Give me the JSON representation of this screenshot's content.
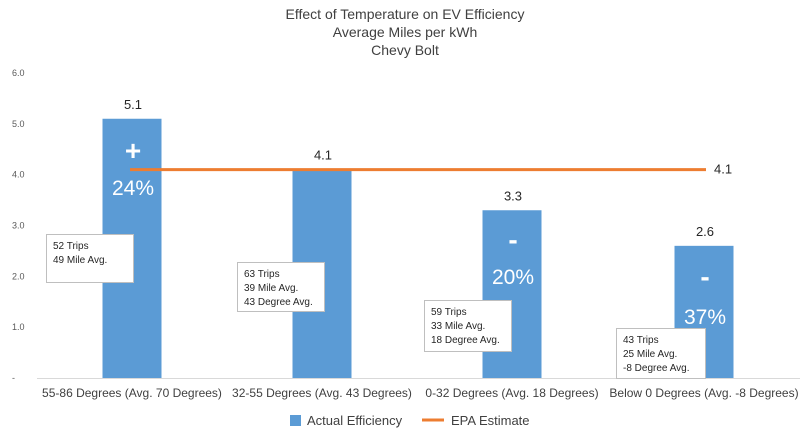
{
  "chart_data": {
    "type": "bar",
    "title": [
      "Effect of Temperature on EV Efficiency",
      "Average Miles per kWh",
      "Chevy Bolt"
    ],
    "categories": [
      "55-86 Degrees (Avg. 70 Degrees)",
      "32-55 Degrees (Avg. 43 Degrees)",
      "0-32 Degrees (Avg. 18 Degrees)",
      "Below 0 Degrees (Avg. -8 Degrees)"
    ],
    "series": [
      {
        "name": "Actual Efficiency",
        "kind": "bar",
        "color": "#5b9bd5",
        "values": [
          5.1,
          4.1,
          3.3,
          2.6
        ]
      },
      {
        "name": "EPA Estimate",
        "kind": "line",
        "color": "#ed7d31",
        "values": [
          4.1,
          4.1,
          4.1,
          4.1
        ]
      }
    ],
    "value_labels": [
      "5.1",
      "4.1",
      "3.3",
      "2.6"
    ],
    "epa_label": "4.1",
    "yticks": [
      "6.0",
      "5.0",
      "4.0",
      "3.0",
      "2.0",
      "1.0",
      "-"
    ],
    "ylim": [
      0,
      6
    ],
    "grid": false,
    "legend_position": "bottom",
    "percent_annotations": [
      {
        "category_index": 0,
        "sign": "+",
        "text": "24%"
      },
      {
        "category_index": 2,
        "sign": "-",
        "text": "20%"
      },
      {
        "category_index": 3,
        "sign": "-",
        "text": "37%"
      }
    ],
    "trip_notes": [
      {
        "category_index": 0,
        "lines": [
          "52 Trips",
          "49 Mile Avg."
        ]
      },
      {
        "category_index": 1,
        "lines": [
          "63 Trips",
          "39 Mile Avg.",
          "43 Degree Avg."
        ]
      },
      {
        "category_index": 2,
        "lines": [
          "59 Trips",
          "33 Mile Avg.",
          "18 Degree Avg."
        ]
      },
      {
        "category_index": 3,
        "lines": [
          "43 Trips",
          "25 Mile Avg.",
          "-8 Degree Avg."
        ]
      }
    ]
  }
}
